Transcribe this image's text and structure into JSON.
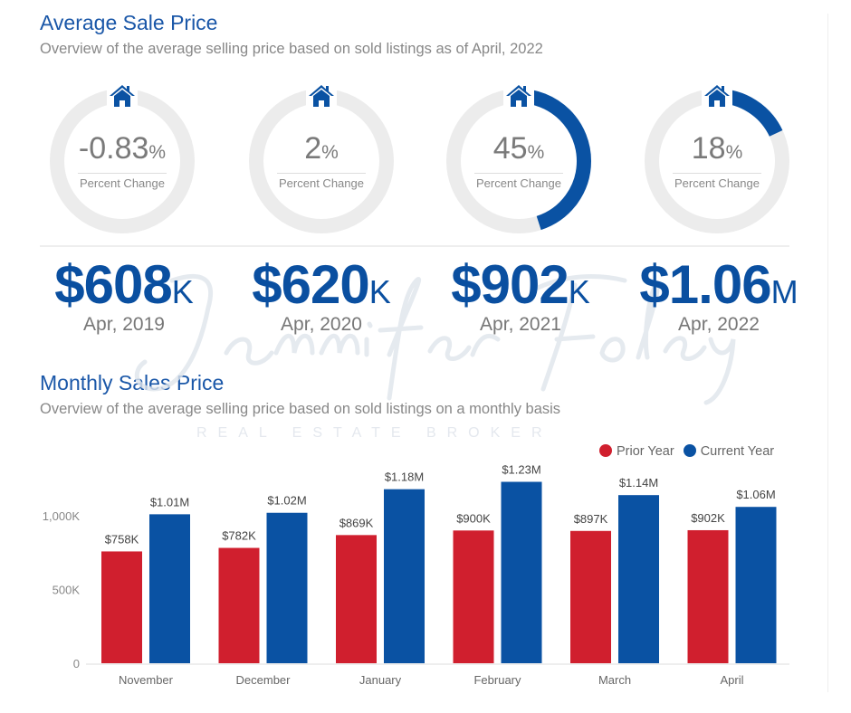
{
  "header": {
    "title": "Average Sale Price",
    "subtitle": "Overview of the average selling price based on sold listings as of April, 2022"
  },
  "colors": {
    "accent": "#0a52a3",
    "prior": "#d01f2e",
    "current": "#0a52a3",
    "ring": "#ececec"
  },
  "gauges": [
    {
      "value": "-0.83",
      "pct": -0.83,
      "unit": "%",
      "label": "Percent Change",
      "icon": "house-icon"
    },
    {
      "value": "2",
      "pct": 2,
      "unit": "%",
      "label": "Percent Change",
      "icon": "house-icon"
    },
    {
      "value": "45",
      "pct": 45,
      "unit": "%",
      "label": "Percent Change",
      "icon": "house-icon"
    },
    {
      "value": "18",
      "pct": 18,
      "unit": "%",
      "label": "Percent Change",
      "icon": "house-icon"
    }
  ],
  "prices": [
    {
      "amount": "$608",
      "unit": "K",
      "period": "Apr, 2019"
    },
    {
      "amount": "$620",
      "unit": "K",
      "period": "Apr, 2020"
    },
    {
      "amount": "$902",
      "unit": "K",
      "period": "Apr, 2021"
    },
    {
      "amount": "$1.06",
      "unit": "M",
      "period": "Apr, 2022"
    }
  ],
  "watermark": {
    "script": "Jennifer Foley",
    "tagline": "REAL ESTATE BROKER"
  },
  "monthly": {
    "title": "Monthly Sales Price",
    "subtitle": "Overview of the average selling price based on sold listings on a monthly basis"
  },
  "chart_data": {
    "type": "bar",
    "categories": [
      "November",
      "December",
      "January",
      "February",
      "March",
      "April"
    ],
    "series": [
      {
        "name": "Prior Year",
        "values": [
          758,
          782,
          869,
          900,
          897,
          902
        ],
        "labels": [
          "$758K",
          "$782K",
          "$869K",
          "$900K",
          "$897K",
          "$902K"
        ]
      },
      {
        "name": "Current Year",
        "values": [
          1010,
          1020,
          1180,
          1230,
          1140,
          1060
        ],
        "labels": [
          "$1.01M",
          "$1.02M",
          "$1.18M",
          "$1.23M",
          "$1.14M",
          "$1.06M"
        ]
      }
    ],
    "yticks": [
      "0",
      "500K",
      "1,000K"
    ],
    "ytick_values": [
      0,
      500,
      1000
    ],
    "ylim": [
      0,
      1300
    ],
    "legend": "top-right",
    "grid": false
  }
}
